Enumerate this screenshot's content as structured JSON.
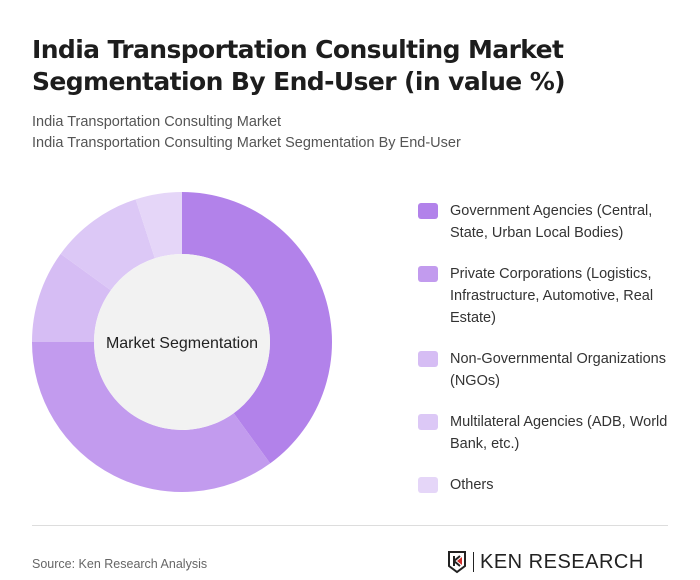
{
  "title": "India Transportation Consulting Market Segmentation By End-User (in value %)",
  "subtitle1": "India Transportation Consulting Market",
  "subtitle2": "India Transportation Consulting Market Segmentation By End-User",
  "source": "Source: Ken Research Analysis",
  "logo_text": "KEN RESEARCH",
  "chart_data": {
    "type": "pie",
    "center_label": "Market Segmentation",
    "categories": [
      "Government Agencies (Central, State, Urban Local Bodies)",
      "Private Corporations (Logistics, Infrastructure, Automotive, Real Estate)",
      "Non-Governmental Organizations (NGOs)",
      "Multilateral Agencies (ADB, World Bank, etc.)",
      "Others"
    ],
    "values": [
      40,
      35,
      10,
      10,
      5
    ],
    "colors": [
      "#b282ea",
      "#c29bee",
      "#d6bdf4",
      "#dcc8f6",
      "#e5d6f8"
    ],
    "legend_position": "right"
  }
}
